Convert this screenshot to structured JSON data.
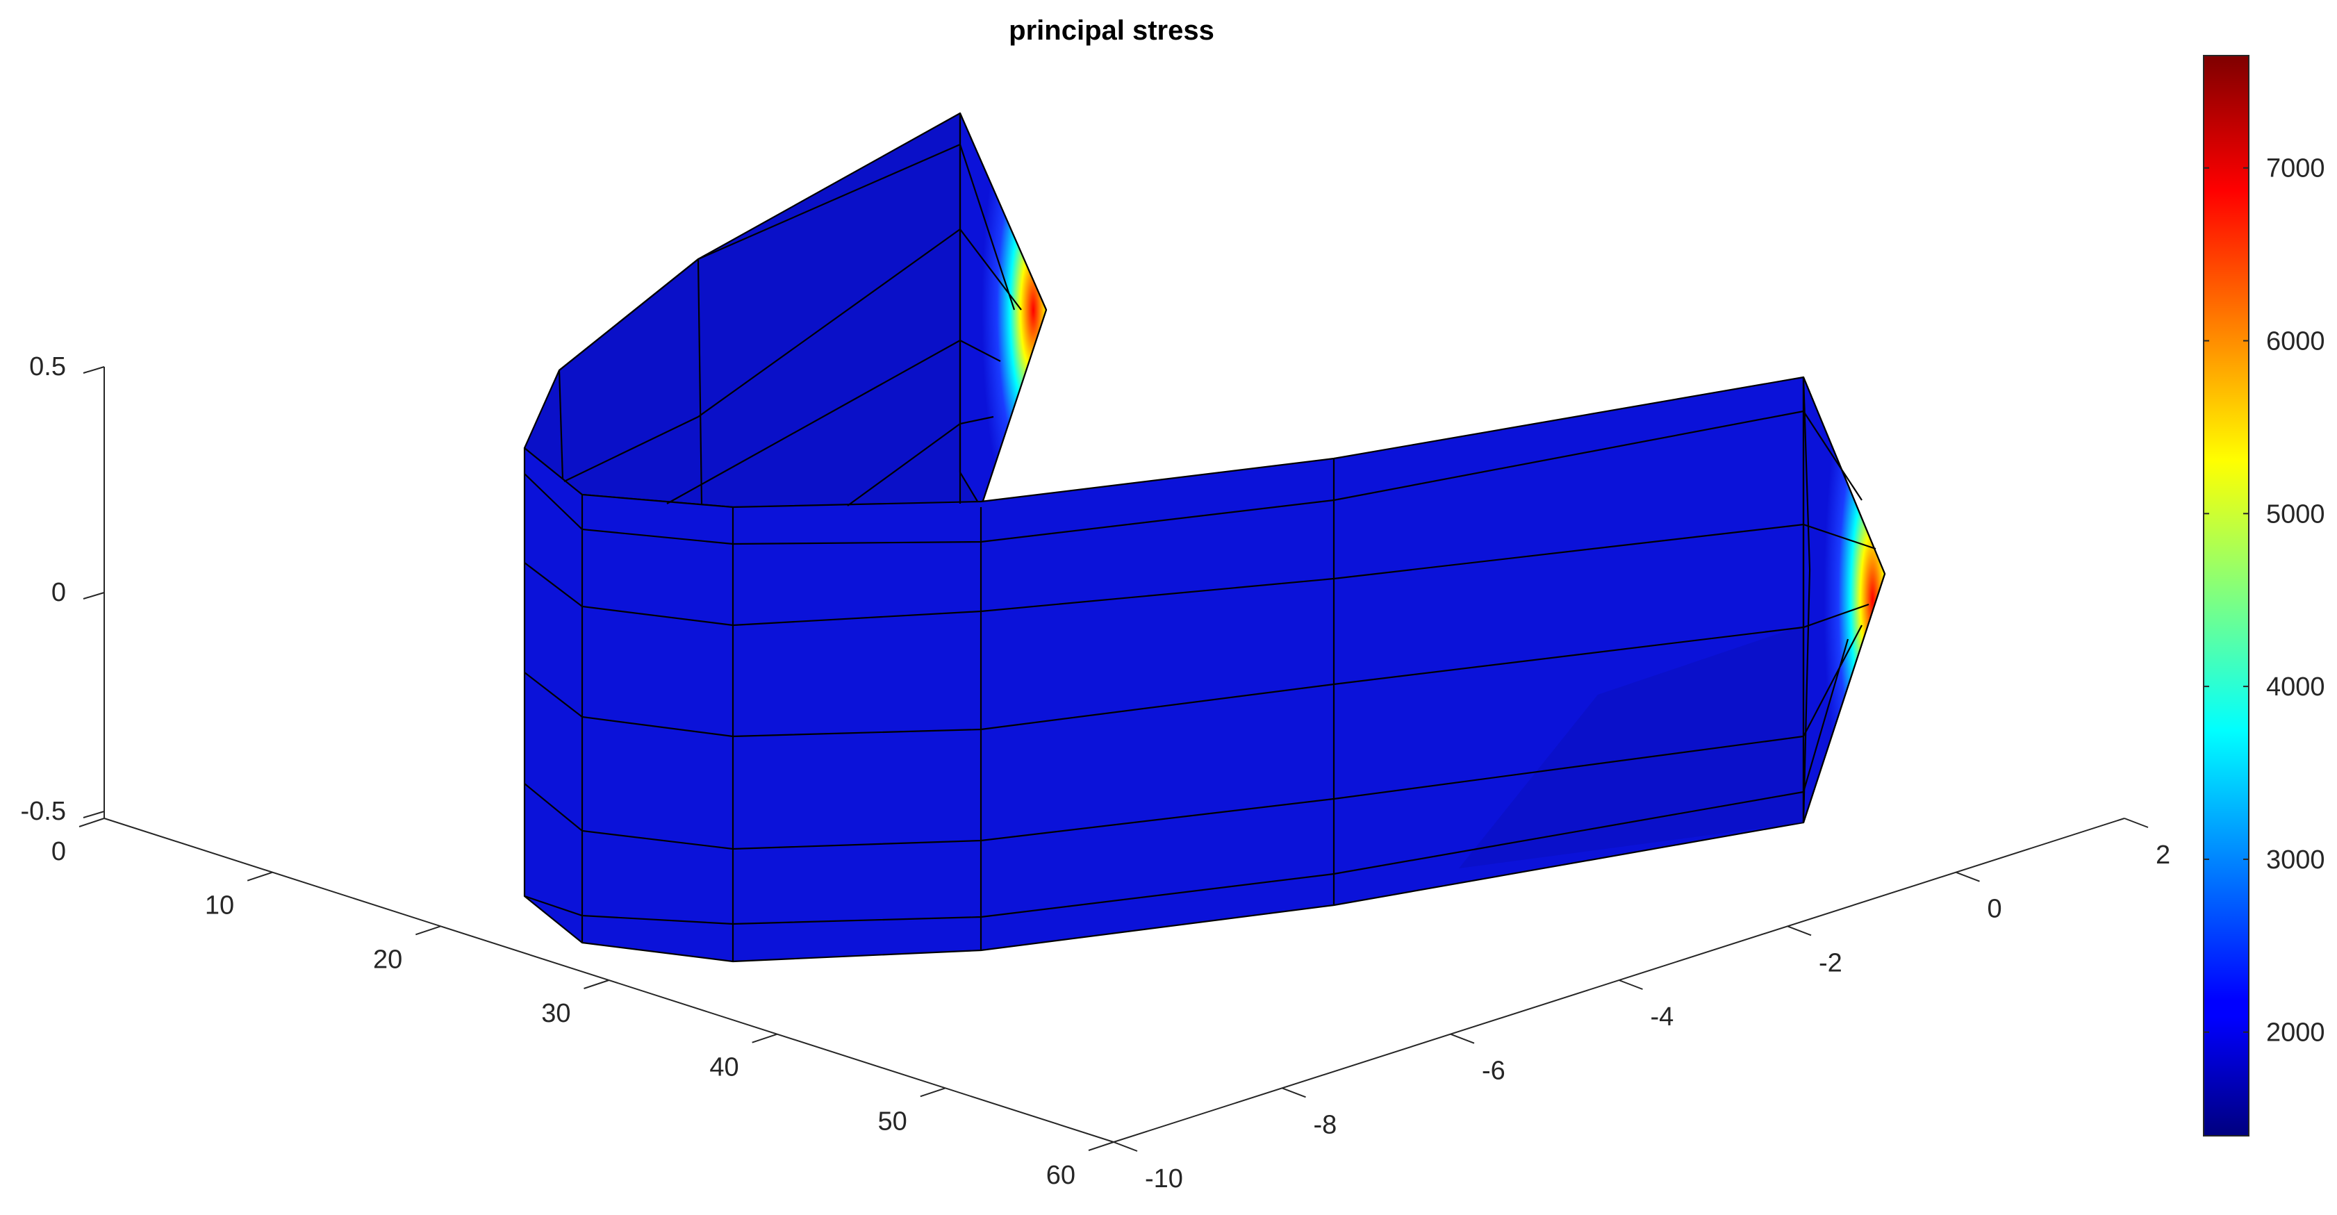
{
  "chart_data": {
    "type": "surface",
    "title": "principal stress",
    "x_axis": {
      "label": "",
      "ticks": [
        0,
        10,
        20,
        30,
        40,
        50,
        60
      ],
      "lim": [
        0,
        60
      ]
    },
    "y_axis": {
      "label": "",
      "ticks": [
        -10,
        -8,
        -6,
        -4,
        -2,
        0,
        2
      ],
      "lim": [
        -10,
        2
      ]
    },
    "z_axis": {
      "label": "",
      "ticks": [
        -0.5,
        0,
        0.5
      ],
      "lim": [
        -0.5,
        0.5
      ]
    },
    "colorbar": {
      "colormap": "jet",
      "lim": [
        1400,
        7650
      ],
      "ticks": [
        2000,
        3000,
        4000,
        5000,
        6000,
        7000
      ]
    },
    "grid": false,
    "colors": {
      "low": "#00008f",
      "body": "#0b12d9",
      "high": "#7f0000"
    }
  }
}
